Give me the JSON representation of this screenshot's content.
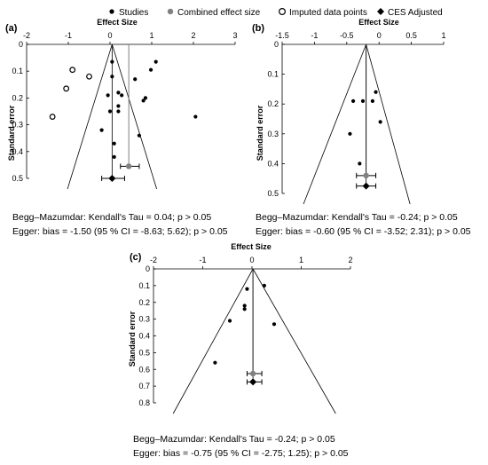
{
  "legend": {
    "studies": "Studies",
    "combined": "Combined effect size",
    "imputed": "Imputed data points",
    "adjusted": "CES Adjusted"
  },
  "colors": {
    "combined": "#808080",
    "studies": "#000000"
  },
  "chart_data": [
    {
      "panel": "(a)",
      "type": "scatter",
      "xlabel": "Effect Size",
      "ylabel": "Standard error",
      "xlim": [
        -2,
        3
      ],
      "ylim": [
        0,
        0.5
      ],
      "xticks": [
        "-2",
        "-1",
        "0",
        "1",
        "2",
        "3"
      ],
      "yticks": [
        "0",
        "0.1",
        "0.2",
        "0.3",
        "0.4",
        "0.5"
      ],
      "studies": [
        {
          "x": 0.05,
          "y": 0.065
        },
        {
          "x": 0.98,
          "y": 0.095
        },
        {
          "x": 1.1,
          "y": 0.065
        },
        {
          "x": 0.6,
          "y": 0.13
        },
        {
          "x": 0.05,
          "y": 0.12
        },
        {
          "x": 0.2,
          "y": 0.18
        },
        {
          "x": 0.28,
          "y": 0.19
        },
        {
          "x": -0.05,
          "y": 0.19
        },
        {
          "x": 0.85,
          "y": 0.2
        },
        {
          "x": 0.8,
          "y": 0.21
        },
        {
          "x": 0.2,
          "y": 0.23
        },
        {
          "x": 0.0,
          "y": 0.25
        },
        {
          "x": 0.2,
          "y": 0.25
        },
        {
          "x": 2.05,
          "y": 0.27
        },
        {
          "x": -0.2,
          "y": 0.32
        },
        {
          "x": 0.7,
          "y": 0.34
        },
        {
          "x": 0.1,
          "y": 0.37
        },
        {
          "x": 0.1,
          "y": 0.42
        }
      ],
      "imputed": [
        {
          "x": -0.9,
          "y": 0.095
        },
        {
          "x": -0.5,
          "y": 0.12
        },
        {
          "x": -1.05,
          "y": 0.165
        },
        {
          "x": -1.38,
          "y": 0.27
        }
      ],
      "combined": {
        "x": 0.45,
        "y": 0.455,
        "ci": [
          0.25,
          0.7
        ]
      },
      "adjusted": {
        "x": 0.05,
        "y": 0.5,
        "ci": [
          -0.2,
          0.35
        ]
      },
      "funnel_center": 0.05,
      "funnel_xmax_at_bottom": [
        -1.02,
        1.12
      ],
      "stats": [
        "Begg–Mazumdar: Kendall's Tau = 0.04; p > 0.05",
        "Egger: bias = -1.50 (95 % CI = -8.63; 5.62); p > 0.05"
      ]
    },
    {
      "panel": "(b)",
      "type": "scatter",
      "xlabel": "Effect Size",
      "ylabel": "Standard error",
      "xlim": [
        -1.5,
        1
      ],
      "ylim": [
        0,
        0.5
      ],
      "xticks": [
        "-1.5",
        "-1",
        "-0.5",
        "0",
        "0.5",
        "1"
      ],
      "yticks": [
        "0",
        "0.1",
        "0.2",
        "0.3",
        "0.4",
        "0.5"
      ],
      "studies": [
        {
          "x": -0.05,
          "y": 0.16
        },
        {
          "x": -0.4,
          "y": 0.19
        },
        {
          "x": -0.25,
          "y": 0.19
        },
        {
          "x": -0.1,
          "y": 0.19
        },
        {
          "x": 0.02,
          "y": 0.26
        },
        {
          "x": -0.45,
          "y": 0.3
        },
        {
          "x": -0.3,
          "y": 0.4
        }
      ],
      "imputed": [],
      "combined": {
        "x": -0.2,
        "y": 0.44,
        "ci": [
          -0.35,
          -0.05
        ]
      },
      "adjusted": {
        "x": -0.2,
        "y": 0.475,
        "ci": [
          -0.35,
          -0.05
        ]
      },
      "funnel_center": -0.2,
      "funnel_xmax_at_bottom": [
        -1.17,
        0.48
      ],
      "stats": [
        "Begg–Mazumdar: Kendall's Tau = -0.24; p > 0.05",
        "Egger: bias = -0.60 (95 % CI = -3.52; 2.31); p > 0.05"
      ]
    },
    {
      "panel": "(c)",
      "type": "scatter",
      "xlabel": "Effect Size",
      "ylabel": "Standard error",
      "xlim": [
        -2,
        2
      ],
      "ylim": [
        0,
        0.8
      ],
      "xticks": [
        "-2",
        "-1",
        "0",
        "1",
        "2"
      ],
      "yticks": [
        "0",
        "0.1",
        "0.2",
        "0.3",
        "0.4",
        "0.5",
        "0.6",
        "0.7",
        "0.8"
      ],
      "studies": [
        {
          "x": 0.25,
          "y": 0.1
        },
        {
          "x": -0.1,
          "y": 0.12
        },
        {
          "x": -0.15,
          "y": 0.22
        },
        {
          "x": -0.15,
          "y": 0.24
        },
        {
          "x": -0.45,
          "y": 0.31
        },
        {
          "x": 0.45,
          "y": 0.33
        },
        {
          "x": -0.75,
          "y": 0.56
        }
      ],
      "imputed": [],
      "combined": {
        "x": 0.02,
        "y": 0.625,
        "ci": [
          -0.1,
          0.2
        ]
      },
      "adjusted": {
        "x": 0.02,
        "y": 0.675,
        "ci": [
          -0.1,
          0.2
        ]
      },
      "funnel_center": 0.02,
      "funnel_xmax_at_bottom": [
        -1.6,
        1.7
      ],
      "stats": [
        "Begg–Mazumdar: Kendall's Tau = -0.24; p > 0.05",
        "Egger: bias = -0.75 (95 % CI = -2.75; 1.25); p > 0.05"
      ]
    }
  ]
}
